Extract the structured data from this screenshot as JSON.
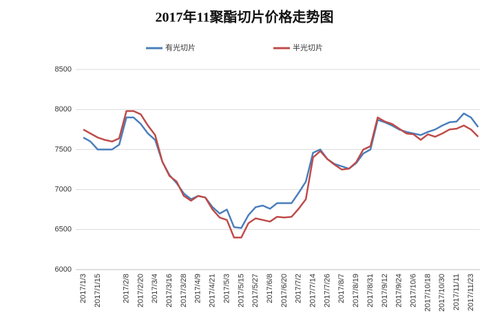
{
  "chart_data": {
    "type": "line",
    "title": "2017年11聚酯切片价格走势图",
    "categories": [
      "2017/1/3",
      null,
      "2017/1/15",
      null,
      null,
      null,
      "2017/2/8",
      null,
      "2017/2/20",
      null,
      "2017/3/4",
      null,
      "2017/3/16",
      null,
      "2017/3/28",
      null,
      "2017/4/9",
      null,
      "2017/4/21",
      null,
      "2017/5/3",
      null,
      "2017/5/15",
      null,
      "2017/5/27",
      null,
      "2017/6/8",
      null,
      "2017/6/20",
      null,
      "2017/7/2",
      null,
      "2017/7/14",
      null,
      "2017/7/26",
      null,
      "2017/8/7",
      null,
      "2017/8/19",
      null,
      "2017/8/31",
      null,
      "2017/9/12",
      null,
      "2017/9/24",
      null,
      "2017/10/6",
      null,
      "2017/10/18",
      null,
      "2017/10/30",
      null,
      "2017/11/11",
      null,
      "2017/11/23",
      null
    ],
    "series": [
      {
        "name": "有光切片",
        "color": "#4a7ebb",
        "values": [
          7650,
          7600,
          7500,
          7500,
          7500,
          7560,
          7900,
          7900,
          7820,
          7700,
          7620,
          7350,
          7180,
          7080,
          6950,
          6880,
          6920,
          6900,
          6780,
          6700,
          6750,
          6530,
          6520,
          6680,
          6780,
          6800,
          6760,
          6830,
          6830,
          6830,
          6960,
          7100,
          7460,
          7500,
          7380,
          7320,
          7290,
          7260,
          7330,
          7450,
          7500,
          7870,
          7840,
          7800,
          7750,
          7720,
          7700,
          7680,
          7720,
          7750,
          7800,
          7840,
          7850,
          7950,
          7900,
          7780
        ]
      },
      {
        "name": "半光切片",
        "color": "#be4b48",
        "values": [
          7750,
          7700,
          7650,
          7620,
          7600,
          7640,
          7980,
          7980,
          7940,
          7800,
          7680,
          7350,
          7170,
          7100,
          6920,
          6860,
          6920,
          6900,
          6750,
          6650,
          6620,
          6400,
          6400,
          6580,
          6640,
          6620,
          6600,
          6660,
          6650,
          6660,
          6760,
          6880,
          7400,
          7480,
          7380,
          7310,
          7250,
          7260,
          7340,
          7500,
          7540,
          7900,
          7850,
          7820,
          7760,
          7700,
          7690,
          7620,
          7690,
          7660,
          7700,
          7750,
          7760,
          7800,
          7750,
          7660
        ]
      }
    ],
    "ylim": [
      6000,
      8500
    ],
    "yticks": [
      6000,
      6500,
      7000,
      7500,
      8000,
      8500
    ],
    "grid": true,
    "legend": "top"
  }
}
